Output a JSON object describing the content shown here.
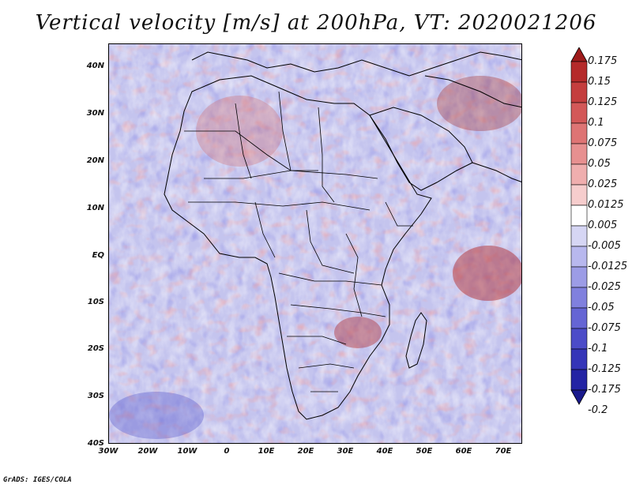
{
  "title": "Vertical velocity [m/s] at 200hPa, VT: 2020021206",
  "credit": "GrADS: IGES/COLA",
  "y_axis_labels": [
    "40N",
    "30N",
    "20N",
    "10N",
    "EQ",
    "10S",
    "20S",
    "30S",
    "40S"
  ],
  "x_axis_labels": [
    "30W",
    "20W",
    "10W",
    "0",
    "10E",
    "20E",
    "30E",
    "40E",
    "50E",
    "60E",
    "70E"
  ],
  "colorbar": {
    "labels": [
      "0.175",
      "0.15",
      "0.125",
      "0.1",
      "0.075",
      "0.05",
      "0.025",
      "0.0125",
      "0.005",
      "-0.005",
      "-0.0125",
      "-0.025",
      "-0.05",
      "-0.075",
      "-0.1",
      "-0.125",
      "-0.175",
      "-0.2"
    ],
    "colors": [
      "#9e1b1b",
      "#b52a2a",
      "#c43e3e",
      "#d35858",
      "#de7474",
      "#e79090",
      "#efaeae",
      "#f6cdcd",
      "#ffffff",
      "#d6d6f4",
      "#b8b8ee",
      "#9c9ce6",
      "#8080de",
      "#6565d4",
      "#4c4cc8",
      "#3535b8",
      "#2424a4",
      "#1a1a8c"
    ]
  },
  "colors": {
    "ocean_base": "#c9c9ef",
    "positive": "#e07070",
    "negative": "#6e6ed8",
    "border": "#000000"
  }
}
